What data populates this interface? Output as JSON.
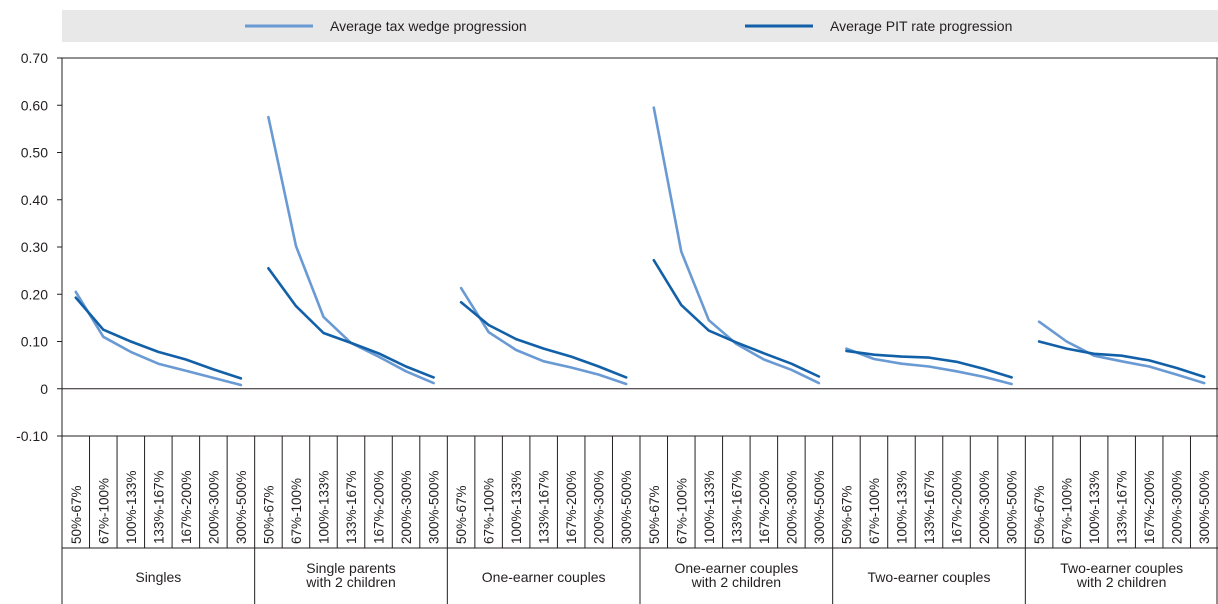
{
  "chart_data": {
    "type": "line",
    "legend": {
      "placement": "top",
      "entries": [
        {
          "label": "Average tax wedge progression",
          "color": "#6a9ad3"
        },
        {
          "label": "Average PIT rate progression",
          "color": "#1260a8"
        }
      ]
    },
    "y_axis": {
      "ylim": [
        -0.1,
        0.7
      ],
      "ticks": [
        -0.1,
        0,
        0.1,
        0.2,
        0.3,
        0.4,
        0.5,
        0.6,
        0.7
      ],
      "tick_labels": [
        "-0.10",
        "0",
        "0.10",
        "0.20",
        "0.30",
        "0.40",
        "0.50",
        "0.60",
        "0.70"
      ]
    },
    "categories": [
      "50%-67%",
      "67%-100%",
      "100%-133%",
      "133%-167%",
      "167%-200%",
      "200%-300%",
      "300%-500%"
    ],
    "groups": [
      {
        "label_lines": [
          "Singles"
        ],
        "tax_wedge": [
          0.205,
          0.11,
          0.078,
          0.053,
          0.038,
          0.023,
          0.008
        ],
        "pit_rate": [
          0.193,
          0.125,
          0.1,
          0.078,
          0.062,
          0.041,
          0.022
        ]
      },
      {
        "label_lines": [
          "Single parents",
          "with 2 children"
        ],
        "tax_wedge": [
          0.575,
          0.302,
          0.152,
          0.097,
          0.068,
          0.037,
          0.012
        ],
        "pit_rate": [
          0.255,
          0.175,
          0.118,
          0.097,
          0.075,
          0.047,
          0.024
        ]
      },
      {
        "label_lines": [
          "One-earner couples"
        ],
        "tax_wedge": [
          0.213,
          0.12,
          0.082,
          0.058,
          0.045,
          0.03,
          0.01
        ],
        "pit_rate": [
          0.183,
          0.135,
          0.105,
          0.085,
          0.068,
          0.047,
          0.024
        ]
      },
      {
        "label_lines": [
          "One-earner couples",
          "with 2 children"
        ],
        "tax_wedge": [
          0.595,
          0.29,
          0.145,
          0.095,
          0.062,
          0.04,
          0.012
        ],
        "pit_rate": [
          0.272,
          0.177,
          0.123,
          0.098,
          0.075,
          0.053,
          0.026
        ]
      },
      {
        "label_lines": [
          "Two-earner couples"
        ],
        "tax_wedge": [
          0.085,
          0.063,
          0.053,
          0.047,
          0.037,
          0.025,
          0.01
        ],
        "pit_rate": [
          0.08,
          0.072,
          0.068,
          0.066,
          0.057,
          0.042,
          0.024
        ]
      },
      {
        "label_lines": [
          "Two-earner couples",
          "with 2 children"
        ],
        "tax_wedge": [
          0.142,
          0.1,
          0.07,
          0.058,
          0.047,
          0.03,
          0.012
        ],
        "pit_rate": [
          0.1,
          0.085,
          0.074,
          0.07,
          0.06,
          0.044,
          0.025
        ]
      }
    ],
    "grid": false
  }
}
